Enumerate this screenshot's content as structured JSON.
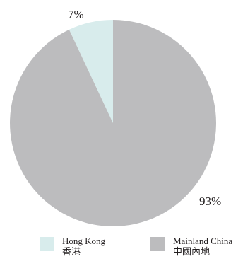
{
  "chart_data": {
    "type": "pie",
    "title": "",
    "slices": [
      {
        "label": "Hong Kong",
        "label_zh": "香港",
        "value": 7,
        "display": "7%",
        "color": "#d8ecec"
      },
      {
        "label": "Mainland China",
        "label_zh": "中國內地",
        "value": 93,
        "display": "93%",
        "color": "#bcbcbe"
      }
    ],
    "start_angle": "12 o'clock",
    "direction": "clockwise",
    "legend_position": "bottom"
  },
  "legend": {
    "items": [
      {
        "en": "Hong Kong",
        "zh": "香港",
        "color": "#d8ecec"
      },
      {
        "en": "Mainland China",
        "zh": "中國內地",
        "color": "#bcbcbe"
      }
    ]
  },
  "labels": {
    "hk_pct": "7%",
    "mc_pct": "93%"
  }
}
